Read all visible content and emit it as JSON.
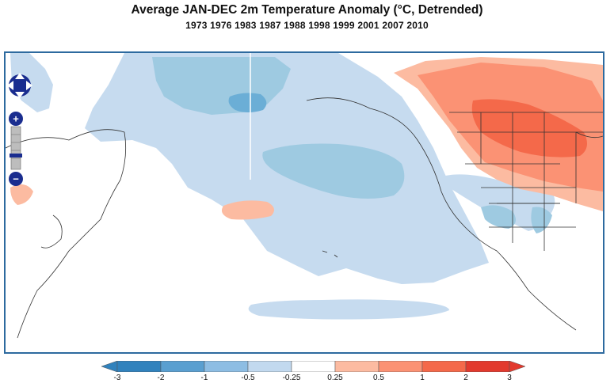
{
  "title": "Average JAN-DEC 2m Temperature Anomaly (°C, Detrended)",
  "subtitle": "1973 1976 1983 1987 1988 1998 1999 2001 2007 2010",
  "map": {
    "region": "North Pacific and North America",
    "variable": "2m Temperature Anomaly",
    "units": "°C",
    "features": [
      {
        "sign": "negative",
        "location": "Alaska / Bering Sea",
        "level": "-0.5 to -0.25"
      },
      {
        "sign": "negative",
        "location": "central North Pacific",
        "level": "-0.5 to -0.25"
      },
      {
        "sign": "negative",
        "location": "eastern tropical Pacific",
        "level": "-0.25"
      },
      {
        "sign": "negative",
        "location": "southern United States",
        "level": "-0.5 to -0.25"
      },
      {
        "sign": "positive",
        "location": "western and central Canada",
        "level": "0.5 to 1"
      },
      {
        "sign": "positive",
        "location": "northern United States",
        "level": "0.5 to 1"
      },
      {
        "sign": "positive",
        "location": "subtropical Pacific",
        "level": "0.25 to 0.5"
      }
    ]
  },
  "navigation": {
    "pan_icon": "pan-arrows-icon",
    "zoom_in_label": "+",
    "zoom_out_label": "−"
  },
  "colorbar": {
    "labels": [
      "-3",
      "-2",
      "-1",
      "-0.5",
      "-0.25",
      "0.25",
      "0.5",
      "1",
      "2",
      "3"
    ],
    "colors": [
      "#3182bd",
      "#5a9fd0",
      "#8dbde3",
      "#c2d9ef",
      "#ffffff",
      "#fcbba1",
      "#fb9274",
      "#f4694a",
      "#e23a2e"
    ],
    "under_color": "#3182bd",
    "over_color": "#e23a2e"
  }
}
